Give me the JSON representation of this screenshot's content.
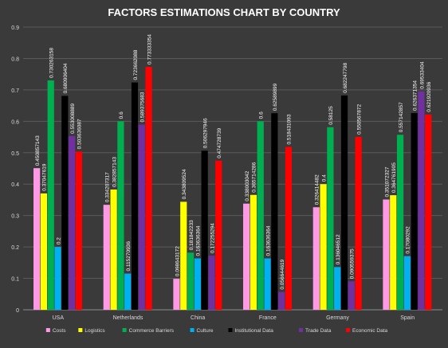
{
  "chart_data": {
    "type": "bar",
    "title": "FACTORS ESTIMATIONS CHART BY COUNTRY",
    "categories": [
      "USA",
      "Netherlands",
      "China",
      "France",
      "Germany",
      "Spain"
    ],
    "ylim": [
      0,
      0.9
    ],
    "yticks": [
      "0",
      "0.1",
      "0.2",
      "0.3",
      "0.4",
      "0.5",
      "0.6",
      "0.7",
      "0.8",
      "0.9"
    ],
    "grid": true,
    "legend_position": "bottom",
    "series": [
      {
        "name": "Costs",
        "color": "#ff99e6",
        "values": [
          0.450857143,
          0.334207317,
          0.098643172,
          0.338003042,
          0.326414482,
          0.351072327
        ],
        "labels": [
          "0.450857143",
          "0.334207317",
          "0.098643172",
          "0.338003042",
          "0.326414482",
          "0.351072327"
        ]
      },
      {
        "name": "Logistics",
        "color": "#ffff00",
        "values": [
          0.37047619,
          0.382857143,
          0.343809524,
          0.365714286,
          0.4,
          0.364761905
        ],
        "labels": [
          "0.37047619",
          "0.382857143",
          "0.343809524",
          "0.365714286",
          "0.4",
          "0.364761905"
        ]
      },
      {
        "name": "Commerce Barriers",
        "color": "#00b050",
        "values": [
          0.730263158,
          0.6,
          0.181842233,
          0.6,
          0.58125,
          0.557142857
        ],
        "labels": [
          "0.730263158",
          "0.6",
          "0.181842233",
          "0.6",
          "0.58125",
          "0.557142857"
        ]
      },
      {
        "name": "Culture",
        "color": "#00b0f0",
        "values": [
          0.2,
          0.115270936,
          0.163636364,
          0.163636364,
          0.136046512,
          0.17080292
        ],
        "labels": [
          "0.2",
          "0.115270936",
          "0.163636364",
          "0.163636364",
          "0.136046512",
          "0.17080292"
        ]
      },
      {
        "name": "Institutional Data",
        "color": "#000000",
        "values": [
          0.680906404,
          0.723662088,
          0.506297946,
          0.62589899,
          0.682247798,
          0.626371354
        ],
        "labels": [
          "0.680906404",
          "0.723662088",
          "0.506297946",
          "0.62589899",
          "0.682247798",
          "0.626371354"
        ]
      },
      {
        "name": "Trade Data",
        "color": "#7030a0",
        "values": [
          0.553008889,
          0.589375683,
          0.172255294,
          0.056644619,
          0.090559375,
          0.69533404
        ],
        "labels": [
          "0.553008889",
          "0.589375683",
          "0.172255294",
          "0.056644619",
          "0.090559375",
          "0.69533404"
        ]
      },
      {
        "name": "Economic Data",
        "color": "#ff0000",
        "values": [
          0.503636087,
          0.773333354,
          0.474728739,
          0.518431093,
          0.550567872,
          0.621920936
        ],
        "labels": [
          "0.503636087",
          "0.773333354",
          "0.474728739",
          "0.518431093",
          "0.550567872",
          "0.621920936"
        ]
      }
    ]
  }
}
